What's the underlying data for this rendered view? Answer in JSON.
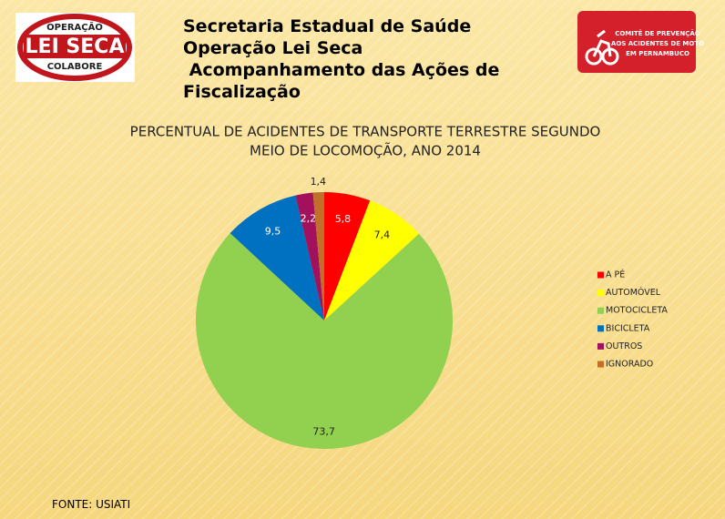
{
  "header": {
    "lines": [
      "Secretaria Estadual de Saúde",
      "Operação Lei Seca",
      " Acompanhamento das Ações de",
      "Fiscalização"
    ]
  },
  "logo_left": {
    "top": "OPERAÇÃO",
    "main": "LEI SECA",
    "bottom": "COLABORE"
  },
  "logo_right": {
    "lines": [
      "COMITÊ DE PREVENÇÃO",
      "AOS ACIDENTES DE MOTO",
      "EM PERNAMBUCO"
    ]
  },
  "chart_data": {
    "type": "pie",
    "title": [
      "PERCENTUAL DE ACIDENTES DE TRANSPORTE TERRESTRE SEGUNDO",
      "MEIO DE LOCOMOÇÃO, ANO 2014"
    ],
    "categories": [
      "A PÉ",
      "AUTOMÓVEL",
      "MOTOCICLETA",
      "BICICLETA",
      "OUTROS",
      "IGNORADO"
    ],
    "values": [
      5.8,
      7.4,
      73.7,
      9.5,
      2.2,
      1.4
    ],
    "value_labels": [
      "5,8",
      "7,4",
      "73,7",
      "9,5",
      "2,2",
      "1,4"
    ],
    "colors": [
      "#ff0000",
      "#ffff00",
      "#92d050",
      "#0070c0",
      "#a3105c",
      "#c07028"
    ],
    "legend": "right"
  },
  "source": "FONTE: USIATI"
}
